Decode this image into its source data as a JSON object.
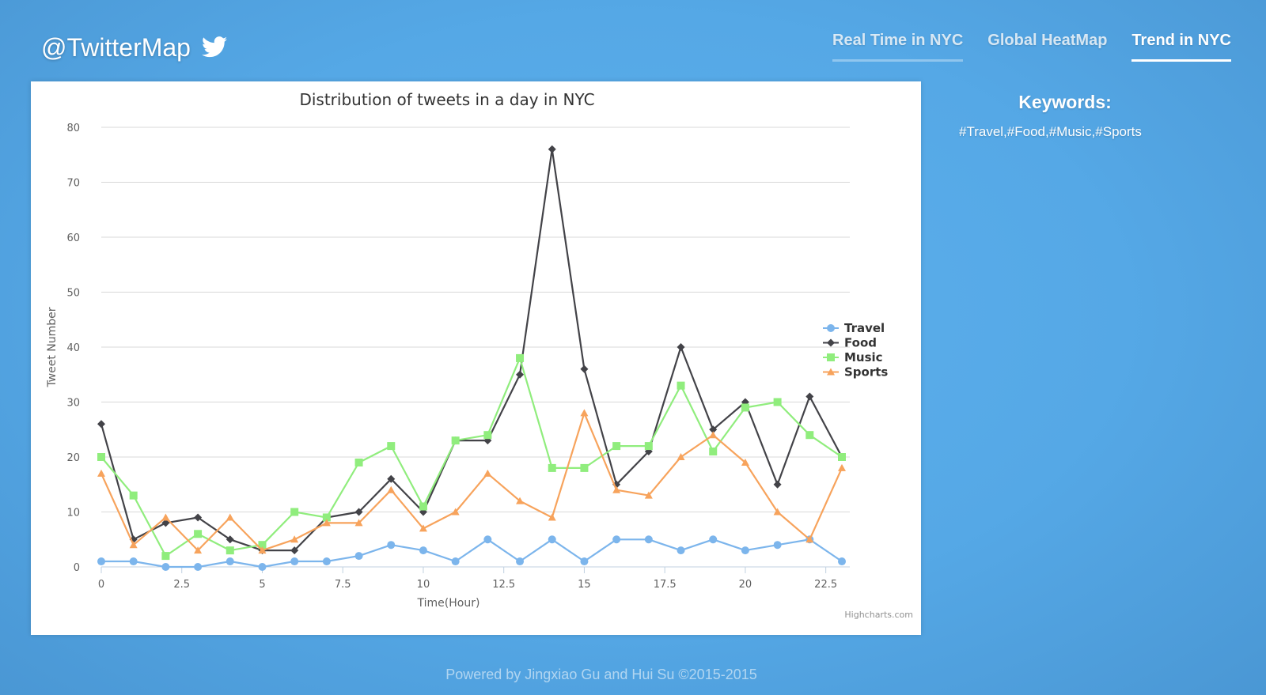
{
  "header": {
    "brand": "@TwitterMap",
    "brand_icon": "twitter-bird-icon",
    "nav": [
      {
        "label": "Real Time in NYC"
      },
      {
        "label": "Global HeatMap"
      },
      {
        "label": "Trend in NYC"
      }
    ]
  },
  "sidebar": {
    "title": "Keywords:",
    "keywords": "#Travel,#Food,#Music,#Sports"
  },
  "footer": {
    "text": "Powered by Jingxiao Gu and Hui Su ©2015-2015"
  },
  "chart_data": {
    "type": "line",
    "title": "Distribution of tweets in a day in NYC",
    "xlabel": "Time(Hour)",
    "ylabel": "Tweet Number",
    "credits": "Highcharts.com",
    "xlim": [
      0,
      23
    ],
    "ylim": [
      0,
      80
    ],
    "xticks": [
      0,
      2.5,
      5,
      7.5,
      10,
      12.5,
      15,
      17.5,
      20,
      22.5
    ],
    "yticks": [
      0,
      10,
      20,
      30,
      40,
      50,
      60,
      70,
      80
    ],
    "grid": true,
    "legend_position": "right",
    "x": [
      0,
      1,
      2,
      3,
      4,
      5,
      6,
      7,
      8,
      9,
      10,
      11,
      12,
      13,
      14,
      15,
      16,
      17,
      18,
      19,
      20,
      21,
      22,
      23
    ],
    "series": [
      {
        "name": "Travel",
        "color": "#7cb5ec",
        "marker": "circle",
        "values": [
          1,
          1,
          0,
          0,
          1,
          0,
          1,
          1,
          2,
          4,
          3,
          1,
          5,
          1,
          5,
          1,
          5,
          5,
          3,
          5,
          3,
          4,
          5,
          1
        ]
      },
      {
        "name": "Food",
        "color": "#434348",
        "marker": "diamond",
        "values": [
          26,
          5,
          8,
          9,
          5,
          3,
          3,
          9,
          10,
          16,
          10,
          23,
          23,
          35,
          76,
          36,
          15,
          21,
          40,
          25,
          30,
          15,
          31,
          20
        ]
      },
      {
        "name": "Music",
        "color": "#90ed7d",
        "marker": "square",
        "values": [
          20,
          13,
          2,
          6,
          3,
          4,
          10,
          9,
          19,
          22,
          11,
          23,
          24,
          38,
          18,
          18,
          22,
          22,
          33,
          21,
          29,
          30,
          24,
          20
        ]
      },
      {
        "name": "Sports",
        "color": "#f7a35c",
        "marker": "triangle",
        "values": [
          17,
          4,
          9,
          3,
          9,
          3,
          5,
          8,
          8,
          14,
          7,
          10,
          17,
          12,
          9,
          28,
          14,
          13,
          20,
          24,
          19,
          10,
          5,
          18
        ]
      }
    ]
  }
}
